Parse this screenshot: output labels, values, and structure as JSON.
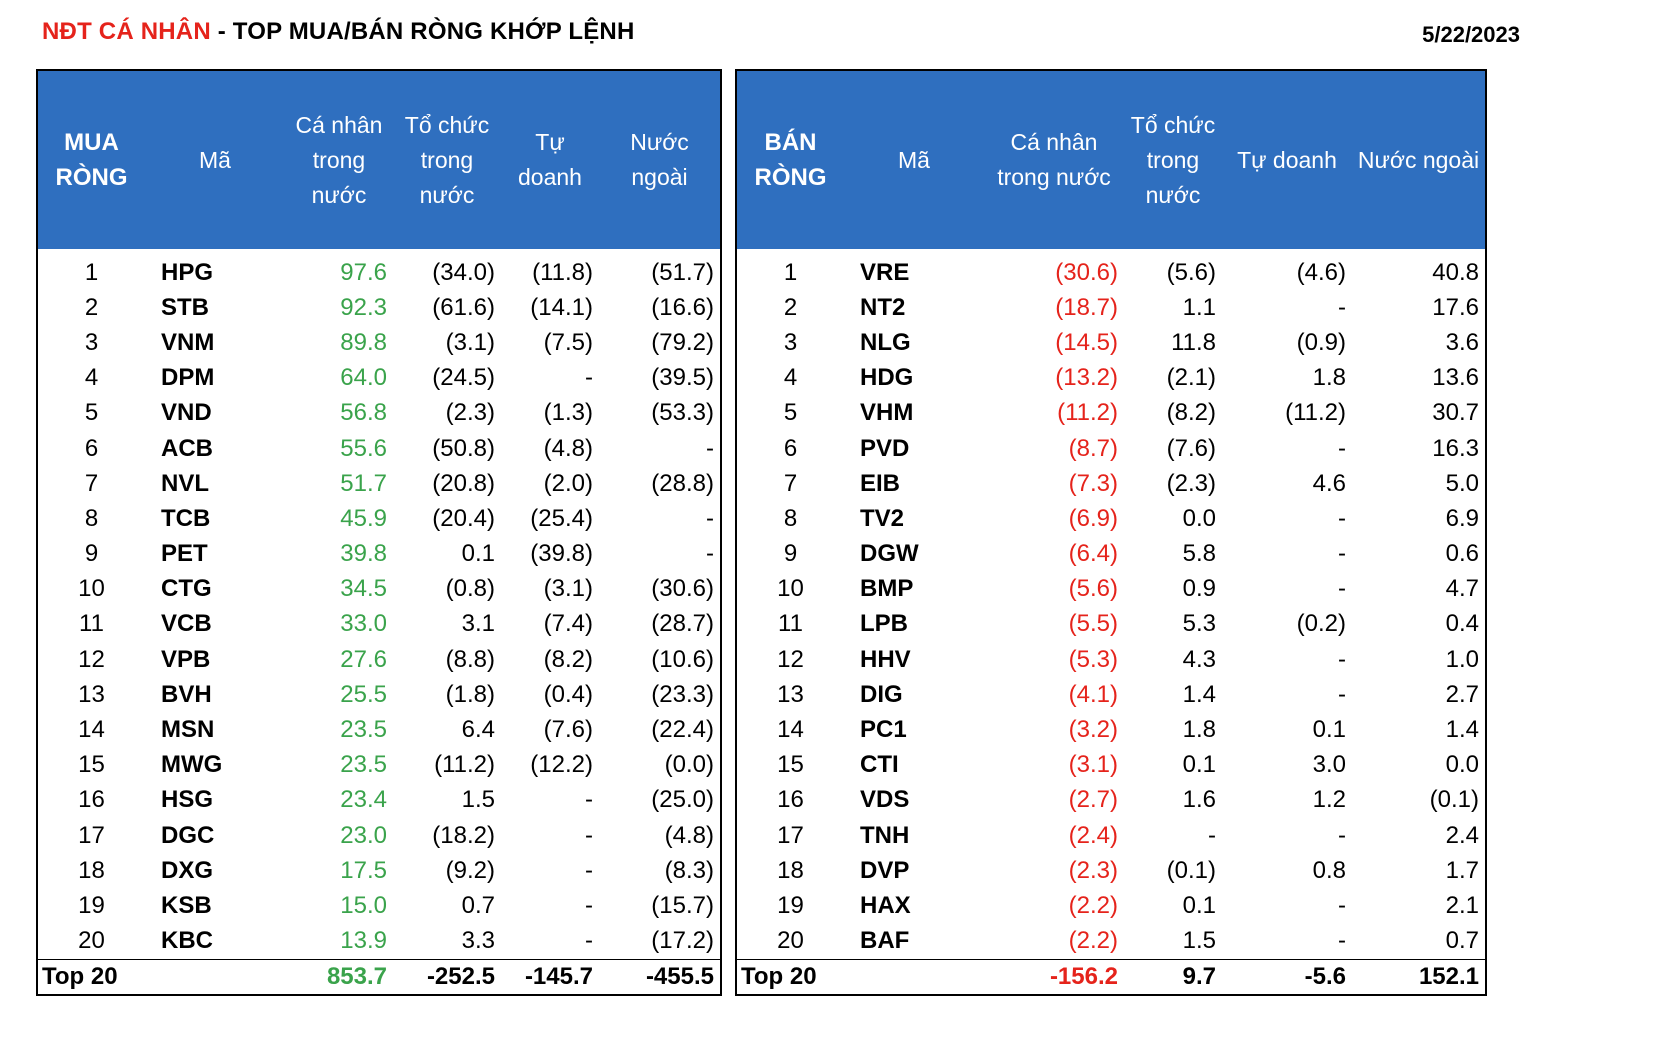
{
  "title": {
    "highlight": "NĐT CÁ NHÂN",
    "rest": " - TOP MUA/BÁN RÒNG KHỚP LỆNH"
  },
  "date": "5/22/2023",
  "buy": {
    "headers": {
      "rank": "MUA RÒNG",
      "code": "Mã",
      "individual": "Cá nhân trong nước",
      "institution": "Tổ chức trong nước",
      "proprietary": "Tự doanh",
      "foreign": "Nước ngoài"
    },
    "rows": [
      [
        "1",
        "HPG",
        "97.6",
        "(34.0)",
        "(11.8)",
        "(51.7)"
      ],
      [
        "2",
        "STB",
        "92.3",
        "(61.6)",
        "(14.1)",
        "(16.6)"
      ],
      [
        "3",
        "VNM",
        "89.8",
        "(3.1)",
        "(7.5)",
        "(79.2)"
      ],
      [
        "4",
        "DPM",
        "64.0",
        "(24.5)",
        "-",
        "(39.5)"
      ],
      [
        "5",
        "VND",
        "56.8",
        "(2.3)",
        "(1.3)",
        "(53.3)"
      ],
      [
        "6",
        "ACB",
        "55.6",
        "(50.8)",
        "(4.8)",
        "-"
      ],
      [
        "7",
        "NVL",
        "51.7",
        "(20.8)",
        "(2.0)",
        "(28.8)"
      ],
      [
        "8",
        "TCB",
        "45.9",
        "(20.4)",
        "(25.4)",
        "-"
      ],
      [
        "9",
        "PET",
        "39.8",
        "0.1",
        "(39.8)",
        "-"
      ],
      [
        "10",
        "CTG",
        "34.5",
        "(0.8)",
        "(3.1)",
        "(30.6)"
      ],
      [
        "11",
        "VCB",
        "33.0",
        "3.1",
        "(7.4)",
        "(28.7)"
      ],
      [
        "12",
        "VPB",
        "27.6",
        "(8.8)",
        "(8.2)",
        "(10.6)"
      ],
      [
        "13",
        "BVH",
        "25.5",
        "(1.8)",
        "(0.4)",
        "(23.3)"
      ],
      [
        "14",
        "MSN",
        "23.5",
        "6.4",
        "(7.6)",
        "(22.4)"
      ],
      [
        "15",
        "MWG",
        "23.5",
        "(11.2)",
        "(12.2)",
        "(0.0)"
      ],
      [
        "16",
        "HSG",
        "23.4",
        "1.5",
        "-",
        "(25.0)"
      ],
      [
        "17",
        "DGC",
        "23.0",
        "(18.2)",
        "-",
        "(4.8)"
      ],
      [
        "18",
        "DXG",
        "17.5",
        "(9.2)",
        "-",
        "(8.3)"
      ],
      [
        "19",
        "KSB",
        "15.0",
        "0.7",
        "-",
        "(15.7)"
      ],
      [
        "20",
        "KBC",
        "13.9",
        "3.3",
        "-",
        "(17.2)"
      ]
    ],
    "total": {
      "label": "Top 20",
      "individual": "853.7",
      "institution": "-252.5",
      "proprietary": "-145.7",
      "foreign": "-455.5"
    }
  },
  "sell": {
    "headers": {
      "rank": "BÁN RÒNG",
      "code": "Mã",
      "individual": "Cá nhân trong nước",
      "institution": "Tổ chức trong nước",
      "proprietary": "Tự doanh",
      "foreign": "Nước ngoài"
    },
    "rows": [
      [
        "1",
        "VRE",
        "(30.6)",
        "(5.6)",
        "(4.6)",
        "40.8"
      ],
      [
        "2",
        "NT2",
        "(18.7)",
        "1.1",
        "-",
        "17.6"
      ],
      [
        "3",
        "NLG",
        "(14.5)",
        "11.8",
        "(0.9)",
        "3.6"
      ],
      [
        "4",
        "HDG",
        "(13.2)",
        "(2.1)",
        "1.8",
        "13.6"
      ],
      [
        "5",
        "VHM",
        "(11.2)",
        "(8.2)",
        "(11.2)",
        "30.7"
      ],
      [
        "6",
        "PVD",
        "(8.7)",
        "(7.6)",
        "-",
        "16.3"
      ],
      [
        "7",
        "EIB",
        "(7.3)",
        "(2.3)",
        "4.6",
        "5.0"
      ],
      [
        "8",
        "TV2",
        "(6.9)",
        "0.0",
        "-",
        "6.9"
      ],
      [
        "9",
        "DGW",
        "(6.4)",
        "5.8",
        "-",
        "0.6"
      ],
      [
        "10",
        "BMP",
        "(5.6)",
        "0.9",
        "-",
        "4.7"
      ],
      [
        "11",
        "LPB",
        "(5.5)",
        "5.3",
        "(0.2)",
        "0.4"
      ],
      [
        "12",
        "HHV",
        "(5.3)",
        "4.3",
        "-",
        "1.0"
      ],
      [
        "13",
        "DIG",
        "(4.1)",
        "1.4",
        "-",
        "2.7"
      ],
      [
        "14",
        "PC1",
        "(3.2)",
        "1.8",
        "0.1",
        "1.4"
      ],
      [
        "15",
        "CTI",
        "(3.1)",
        "0.1",
        "3.0",
        "0.0"
      ],
      [
        "16",
        "VDS",
        "(2.7)",
        "1.6",
        "1.2",
        "(0.1)"
      ],
      [
        "17",
        "TNH",
        "(2.4)",
        "-",
        "-",
        "2.4"
      ],
      [
        "18",
        "DVP",
        "(2.3)",
        "(0.1)",
        "0.8",
        "1.7"
      ],
      [
        "19",
        "HAX",
        "(2.2)",
        "0.1",
        "-",
        "2.1"
      ],
      [
        "20",
        "BAF",
        "(2.2)",
        "1.5",
        "-",
        "0.7"
      ]
    ],
    "total": {
      "label": "Top 20",
      "individual": "-156.2",
      "institution": "9.7",
      "proprietary": "-5.6",
      "foreign": "152.1"
    }
  },
  "colors": {
    "header_bg": "#2f6fbf",
    "title_red": "#e5231b",
    "buy_green": "#3aa34b",
    "sell_red": "#e5231b"
  }
}
